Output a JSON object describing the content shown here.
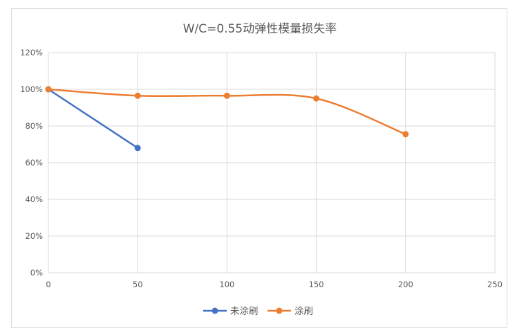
{
  "chart_data": {
    "type": "line",
    "title": "W/C=0.55动弹性模量损失率",
    "xlabel": "",
    "ylabel": "",
    "xlim": [
      0,
      250
    ],
    "ylim": [
      0,
      1.2
    ],
    "x_ticks": [
      0,
      50,
      100,
      150,
      200,
      250
    ],
    "y_ticks": [
      0,
      0.2,
      0.4,
      0.6,
      0.8,
      1.0,
      1.2
    ],
    "y_tick_labels": [
      "0%",
      "20%",
      "40%",
      "60%",
      "80%",
      "100%",
      "120%"
    ],
    "grid": true,
    "legend_position": "bottom",
    "series": [
      {
        "name": "未涂刷",
        "color": "#4472c4",
        "smooth": false,
        "x": [
          0,
          50
        ],
        "y": [
          1.0,
          0.68
        ]
      },
      {
        "name": "涂刷",
        "color": "#ed7d31",
        "smooth": true,
        "x": [
          0,
          50,
          100,
          150,
          200
        ],
        "y": [
          1.0,
          0.965,
          0.965,
          0.95,
          0.755
        ]
      }
    ]
  }
}
